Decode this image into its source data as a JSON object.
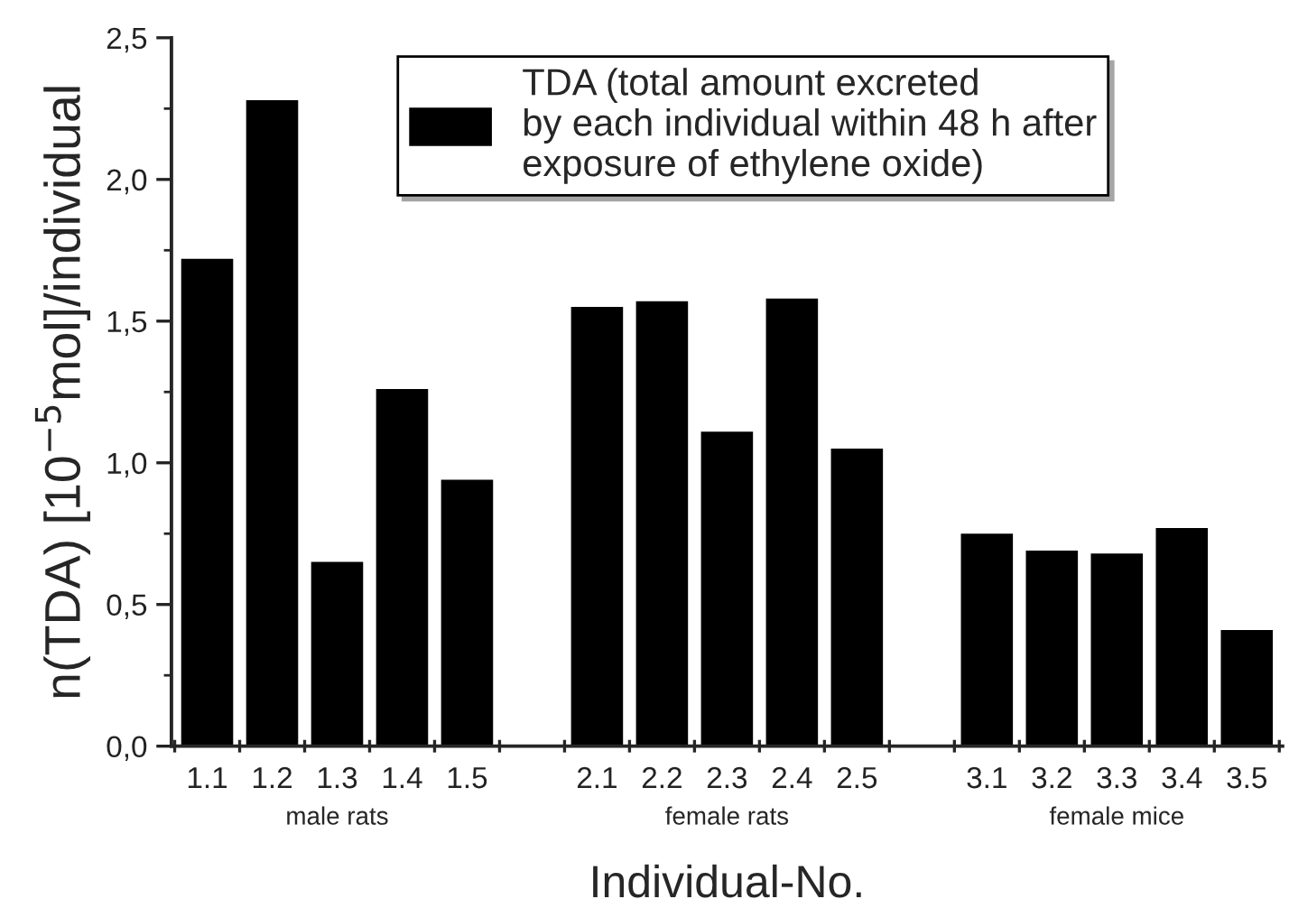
{
  "chart_data": {
    "type": "bar",
    "xlabel": "Individual-No.",
    "ylabel": "n(TDA) [10$^{−5}$mol]/individual",
    "categories": [
      "1.1",
      "1.2",
      "1.3",
      "1.4",
      "1.5",
      null,
      "2.1",
      "2.2",
      "2.3",
      "2.4",
      "2.5",
      null,
      "3.1",
      "3.2",
      "3.3",
      "3.4",
      "3.5"
    ],
    "series": [
      {
        "name": "TDA (total amount excreted\nby each individual within 48 h after\nexposure of ethylene oxide)",
        "color": "#000000",
        "values": [
          1.72,
          2.28,
          0.65,
          1.26,
          0.94,
          null,
          1.55,
          1.57,
          1.11,
          1.58,
          1.05,
          null,
          0.75,
          0.69,
          0.68,
          0.77,
          0.41
        ]
      }
    ],
    "ylim": [
      0,
      2.5
    ],
    "yticks": [
      {
        "value": 0,
        "label": "0,0"
      },
      {
        "value": 0.5,
        "label": "0,5"
      },
      {
        "value": 1.0,
        "label": "1,0"
      },
      {
        "value": 1.5,
        "label": "1,5"
      },
      {
        "value": 2.0,
        "label": "2,0"
      },
      {
        "value": 2.5,
        "label": "2,5"
      }
    ],
    "annotations": [
      "male rats",
      "female rats",
      "female mice"
    ],
    "legend": "top right",
    "grid": false
  }
}
